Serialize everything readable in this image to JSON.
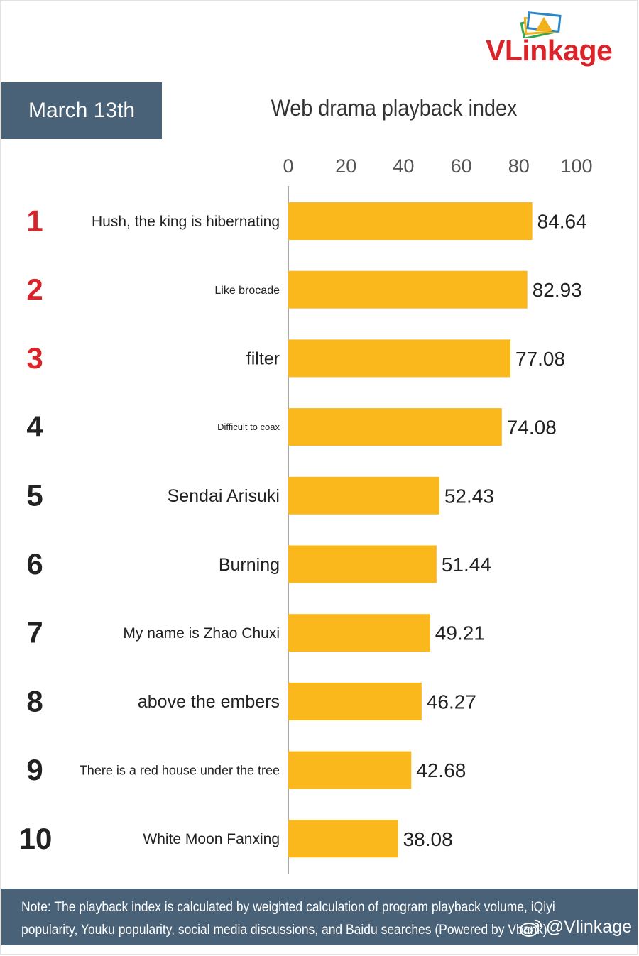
{
  "header": {
    "brand": "VLinkage",
    "date": "March 13th"
  },
  "chart_data": {
    "type": "bar",
    "orientation": "horizontal",
    "title": "Web drama playback index",
    "xlim": [
      0,
      100
    ],
    "ticks": [
      "0",
      "20",
      "40",
      "60",
      "80",
      "100"
    ],
    "ranks": [
      "1",
      "2",
      "3",
      "4",
      "5",
      "6",
      "7",
      "8",
      "9",
      "10"
    ],
    "categories": [
      "Hush, the king is hibernating",
      "Like brocade",
      "filter",
      "Difficult to coax",
      "Sendai Arisuki",
      "Burning",
      "My name is Zhao Chuxi",
      "above the embers",
      "There is a red house under the tree",
      "White Moon Fanxing"
    ],
    "values": [
      84.64,
      82.93,
      77.08,
      74.08,
      52.43,
      51.44,
      49.21,
      46.27,
      42.68,
      38.08
    ],
    "value_labels": [
      "84.64",
      "82.93",
      "77.08",
      "74.08",
      "52.43",
      "51.44",
      "49.21",
      "46.27",
      "42.68",
      "38.08"
    ],
    "colors": {
      "bar": "#fbb81c",
      "top_rank": "#d9252a",
      "rank": "#222222"
    }
  },
  "footer": {
    "note": "Note: The playback index is calculated by weighted calculation of program playback volume, iQiyi popularity, Youku popularity, social media discussions, and Baidu searches (Powered by Vbank)",
    "handle": "@Vlinkage",
    "handle_icon": "weibo-icon"
  }
}
